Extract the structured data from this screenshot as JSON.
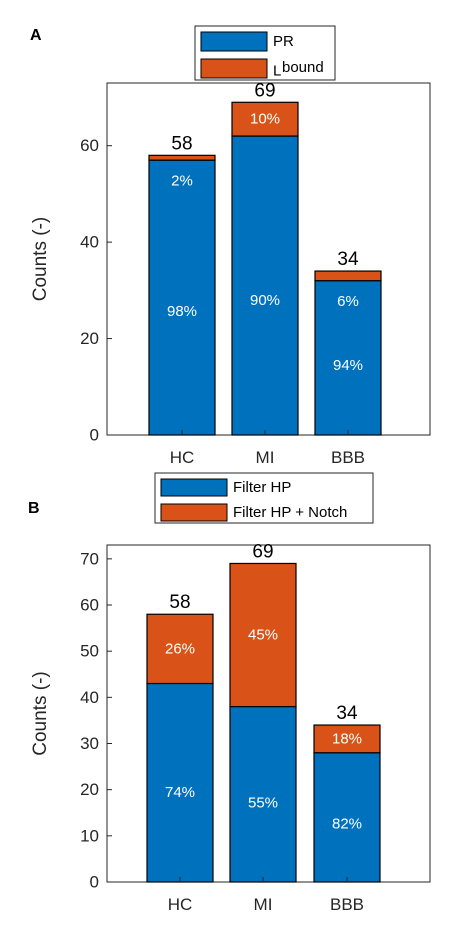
{
  "chart_data": [
    {
      "panel_label": "A",
      "type": "bar",
      "stacked": true,
      "categories": [
        "HC",
        "MI",
        "BBB"
      ],
      "series": [
        {
          "name": "PR",
          "name_sub": "",
          "name_sup": "",
          "color": "#0072BD",
          "values": [
            57,
            62,
            32
          ],
          "labels": [
            "98%",
            "90%",
            "94%"
          ]
        },
        {
          "name": "",
          "name_sub": "L",
          "name_sup": "bound",
          "color": "#D95319",
          "values": [
            1,
            7,
            2
          ],
          "labels": [
            "2%",
            "10%",
            "6%"
          ]
        }
      ],
      "totals": [
        "58",
        "69",
        "34"
      ],
      "ylabel": "Counts (-)",
      "ylim": [
        0,
        73
      ],
      "yticks": [
        0,
        20,
        40,
        60
      ],
      "grid": false,
      "legend_position": "top-center-outside"
    },
    {
      "panel_label": "B",
      "type": "bar",
      "stacked": true,
      "categories": [
        "HC",
        "MI",
        "BBB"
      ],
      "series": [
        {
          "name": "Filter HP",
          "color": "#0072BD",
          "values": [
            43,
            38,
            28
          ],
          "labels": [
            "74%",
            "55%",
            "82%"
          ]
        },
        {
          "name": "Filter HP + Notch",
          "color": "#D95319",
          "values": [
            15,
            31,
            6
          ],
          "labels": [
            "26%",
            "45%",
            "18%"
          ]
        }
      ],
      "totals": [
        "58",
        "69",
        "34"
      ],
      "ylabel": "Counts (-)",
      "ylim": [
        0,
        73
      ],
      "yticks": [
        0,
        10,
        20,
        30,
        40,
        50,
        60,
        70
      ],
      "grid": false,
      "legend_position": "top-center-outside"
    }
  ]
}
